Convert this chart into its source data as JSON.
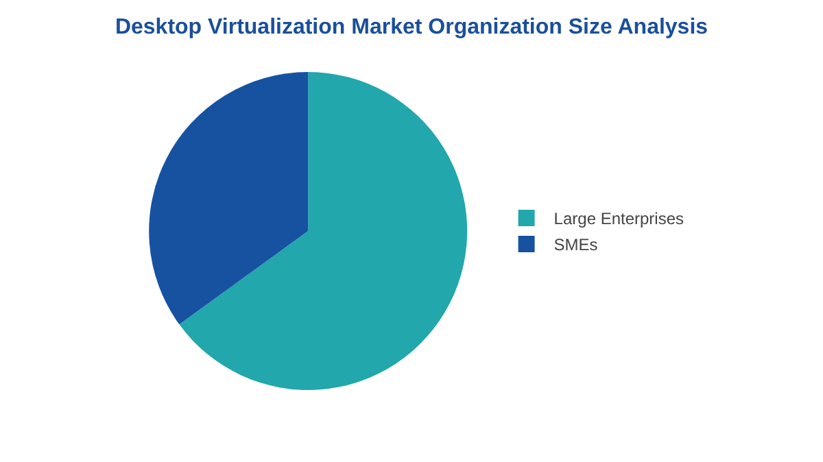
{
  "chart_data": {
    "type": "pie",
    "title": "Desktop Virtualization Market Organization Size Analysis",
    "categories": [
      "Large Enterprises",
      "SMEs"
    ],
    "values": [
      65,
      35
    ],
    "colors": [
      "#21a7ac",
      "#1752a1"
    ],
    "legend": "right"
  }
}
